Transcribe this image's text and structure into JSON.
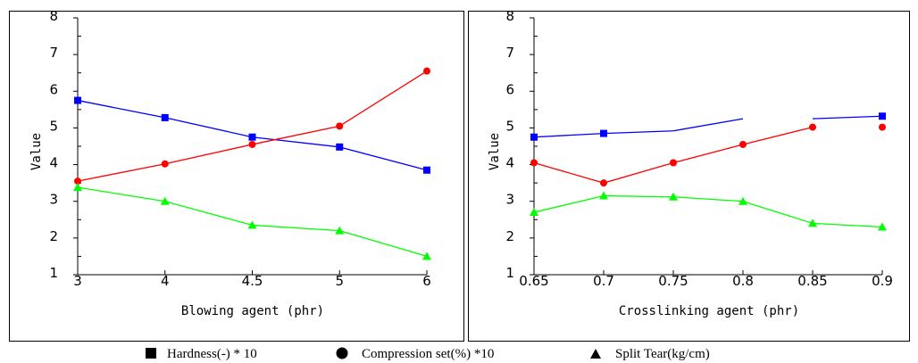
{
  "chart_data": [
    {
      "type": "line",
      "xlabel": "Blowing agent (phr)",
      "ylabel": "Value",
      "categories": [
        "3",
        "4",
        "4.5",
        "5",
        "6"
      ],
      "ylim": [
        1,
        8
      ],
      "yticks": [
        "1",
        "2",
        "3",
        "4",
        "5",
        "6",
        "7",
        "8"
      ],
      "grid": false,
      "series": [
        {
          "name": "Hardness(-) * 10",
          "color": "#0000ff",
          "marker": "square",
          "values": [
            5.75,
            5.28,
            4.75,
            4.48,
            3.85
          ]
        },
        {
          "name": "Compression set(%) *10",
          "color": "#ff0000",
          "marker": "circle",
          "values": [
            3.55,
            4.02,
            4.55,
            5.05,
            6.55
          ]
        },
        {
          "name": "Split Tear(kg/cm)",
          "color": "#00ff00",
          "marker": "triangle",
          "values": [
            3.38,
            3.0,
            2.35,
            2.2,
            1.5
          ]
        }
      ]
    },
    {
      "type": "line",
      "xlabel": "Crosslinking agent (phr)",
      "ylabel": "Value",
      "categories": [
        "0.65",
        "0.7",
        "0.75",
        "0.8",
        "0.85",
        "0.9"
      ],
      "ylim": [
        1,
        8
      ],
      "yticks": [
        "1",
        "2",
        "3",
        "4",
        "5",
        "6",
        "7",
        "8"
      ],
      "grid": false,
      "series": [
        {
          "name": "Hardness(-) * 10",
          "color": "#0000ff",
          "marker": "square",
          "values": [
            4.75,
            4.85,
            4.92,
            5.25,
            5.25,
            5.32
          ],
          "markers_at": [
            0,
            1,
            5
          ],
          "segments": [
            [
              0,
              3
            ],
            [
              4,
              5
            ]
          ]
        },
        {
          "name": "Compression set(%) *10",
          "color": "#ff0000",
          "marker": "circle",
          "values": [
            4.05,
            3.5,
            4.05,
            4.55,
            5.02,
            5.02
          ],
          "markers_at": [
            0,
            1,
            2,
            3,
            4,
            5
          ],
          "segments": [
            [
              0,
              4
            ]
          ]
        },
        {
          "name": "Split Tear(kg/cm)",
          "color": "#00ff00",
          "marker": "triangle",
          "values": [
            2.7,
            3.15,
            3.12,
            3.0,
            2.4,
            2.3
          ],
          "markers_at": [
            0,
            1,
            2,
            3,
            4,
            5
          ],
          "segments": [
            [
              0,
              5
            ]
          ]
        }
      ]
    }
  ],
  "legend": [
    {
      "label": "Hardness(-) * 10",
      "marker": "square"
    },
    {
      "label": "Compression set(%) *10",
      "marker": "circle"
    },
    {
      "label": "Split Tear(kg/cm)",
      "marker": "triangle"
    }
  ]
}
